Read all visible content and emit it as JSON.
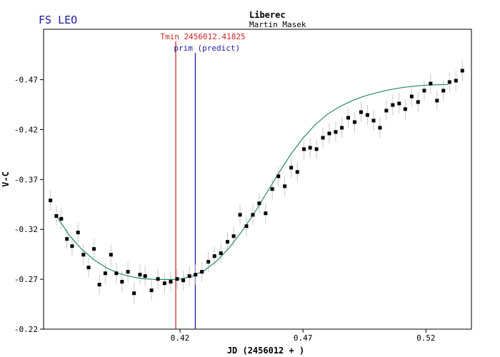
{
  "header": {
    "star": "FS LEO",
    "observatory": "Liberec",
    "observer": "Martin Masek"
  },
  "chart_data": {
    "type": "scatter",
    "title": "FS LEO",
    "xlabel": "JD (2456012 + )",
    "ylabel": "V-C",
    "xlim": [
      0.3645,
      0.5385
    ],
    "ylim": [
      -0.47,
      -0.22
    ],
    "y_axis_inverted": true,
    "y_visible_range": [
      -0.22,
      -0.5205
    ],
    "x_ticks": [
      0.42,
      0.47,
      0.52
    ],
    "x_tick_labels": [
      "0.42",
      "0.47",
      "0.52"
    ],
    "y_ticks": [
      -0.47,
      -0.42,
      -0.37,
      -0.32,
      -0.27,
      -0.22
    ],
    "y_tick_labels": [
      "-0.47",
      "-0.42",
      "-0.37",
      "-0.32",
      "-0.27",
      "-0.22"
    ],
    "grid": false,
    "colors": {
      "title": "#1a1aa6",
      "tmin_line": "#cc2222",
      "predict_line": "#1a1aa6",
      "fit_curve": "#2a8a6a",
      "error_bar": "#c8c8c8",
      "point": "#000000"
    },
    "markers": [
      {
        "name": "tmin",
        "label": "Tmin 2456012.41825",
        "x": 0.41825
      },
      {
        "name": "predict",
        "label": "prim (predict)",
        "x": 0.4262
      }
    ],
    "series": [
      {
        "kind": "observations",
        "points": [
          [
            0.3673,
            -0.349
          ],
          [
            0.3697,
            -0.3334
          ],
          [
            0.3717,
            -0.3306
          ],
          [
            0.374,
            -0.3104
          ],
          [
            0.3761,
            -0.3032
          ],
          [
            0.3785,
            -0.3169
          ],
          [
            0.3807,
            -0.2946
          ],
          [
            0.3828,
            -0.2818
          ],
          [
            0.385,
            -0.3004
          ],
          [
            0.3872,
            -0.2646
          ],
          [
            0.3896,
            -0.276
          ],
          [
            0.3919,
            -0.2946
          ],
          [
            0.3941,
            -0.276
          ],
          [
            0.3964,
            -0.2675
          ],
          [
            0.3988,
            -0.2775
          ],
          [
            0.4013,
            -0.256
          ],
          [
            0.4037,
            -0.2746
          ],
          [
            0.4058,
            -0.2732
          ],
          [
            0.4084,
            -0.2589
          ],
          [
            0.411,
            -0.2703
          ],
          [
            0.4137,
            -0.266
          ],
          [
            0.4162,
            -0.2675
          ],
          [
            0.4188,
            -0.2703
          ],
          [
            0.4213,
            -0.2689
          ],
          [
            0.4238,
            -0.2732
          ],
          [
            0.4263,
            -0.2746
          ],
          [
            0.4289,
            -0.2775
          ],
          [
            0.4315,
            -0.2875
          ],
          [
            0.434,
            -0.2932
          ],
          [
            0.4366,
            -0.2961
          ],
          [
            0.4393,
            -0.3075
          ],
          [
            0.4418,
            -0.3132
          ],
          [
            0.4444,
            -0.3346
          ],
          [
            0.447,
            -0.3232
          ],
          [
            0.4496,
            -0.3346
          ],
          [
            0.4522,
            -0.3461
          ],
          [
            0.4548,
            -0.3361
          ],
          [
            0.4575,
            -0.3604
          ],
          [
            0.46,
            -0.3732
          ],
          [
            0.4626,
            -0.3632
          ],
          [
            0.4652,
            -0.3818
          ],
          [
            0.4677,
            -0.3775
          ],
          [
            0.4704,
            -0.4004
          ],
          [
            0.4729,
            -0.4018
          ],
          [
            0.4755,
            -0.4004
          ],
          [
            0.4781,
            -0.4118
          ],
          [
            0.4807,
            -0.4161
          ],
          [
            0.4833,
            -0.4176
          ],
          [
            0.4858,
            -0.4218
          ],
          [
            0.4884,
            -0.4318
          ],
          [
            0.491,
            -0.4275
          ],
          [
            0.4936,
            -0.4375
          ],
          [
            0.4962,
            -0.4346
          ],
          [
            0.4987,
            -0.429
          ],
          [
            0.5013,
            -0.4218
          ],
          [
            0.5039,
            -0.439
          ],
          [
            0.5065,
            -0.4446
          ],
          [
            0.5091,
            -0.4461
          ],
          [
            0.5116,
            -0.4405
          ],
          [
            0.5142,
            -0.4532
          ],
          [
            0.5168,
            -0.4476
          ],
          [
            0.5193,
            -0.459
          ],
          [
            0.5219,
            -0.4661
          ],
          [
            0.5245,
            -0.449
          ],
          [
            0.5271,
            -0.459
          ],
          [
            0.5296,
            -0.4676
          ],
          [
            0.5322,
            -0.469
          ],
          [
            0.5348,
            -0.479
          ]
        ]
      },
      {
        "kind": "fit",
        "points": [
          [
            0.37,
            -0.3325
          ],
          [
            0.375,
            -0.314
          ],
          [
            0.38,
            -0.3
          ],
          [
            0.385,
            -0.2895
          ],
          [
            0.39,
            -0.2815
          ],
          [
            0.395,
            -0.276
          ],
          [
            0.4,
            -0.2725
          ],
          [
            0.405,
            -0.2705
          ],
          [
            0.41,
            -0.2698
          ],
          [
            0.415,
            -0.2698
          ],
          [
            0.4183,
            -0.2698
          ],
          [
            0.42,
            -0.2702
          ],
          [
            0.425,
            -0.273
          ],
          [
            0.43,
            -0.279
          ],
          [
            0.435,
            -0.2885
          ],
          [
            0.44,
            -0.3015
          ],
          [
            0.445,
            -0.3175
          ],
          [
            0.45,
            -0.3355
          ],
          [
            0.455,
            -0.3555
          ],
          [
            0.46,
            -0.376
          ],
          [
            0.465,
            -0.395
          ],
          [
            0.47,
            -0.4115
          ],
          [
            0.475,
            -0.425
          ],
          [
            0.48,
            -0.4355
          ],
          [
            0.485,
            -0.443
          ],
          [
            0.49,
            -0.449
          ],
          [
            0.495,
            -0.4535
          ],
          [
            0.5,
            -0.457
          ],
          [
            0.505,
            -0.4598
          ],
          [
            0.51,
            -0.462
          ],
          [
            0.515,
            -0.4635
          ],
          [
            0.52,
            -0.4645
          ],
          [
            0.525,
            -0.465
          ],
          [
            0.529,
            -0.4652
          ]
        ]
      }
    ]
  }
}
